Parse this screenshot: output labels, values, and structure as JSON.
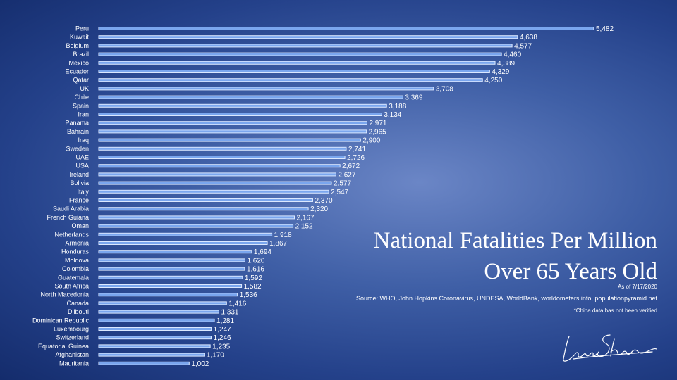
{
  "chart_data": {
    "type": "bar",
    "orientation": "horizontal",
    "title": "National Fatalities Per Million Over 65 Years Old",
    "title_lines": [
      "National Fatalities Per Million",
      "Over 65 Years Old"
    ],
    "as_of": "As of 7/17/2020",
    "source": "Source: WHO, John Hopkins Coronavirus, UNDESA, WorldBank, worldometers.info, populationpyramid.net",
    "note": "*China data has not been verified",
    "xlim": [
      0,
      5482
    ],
    "grid": false,
    "bar_color": "#7aa6ee",
    "categories": [
      "Peru",
      "Kuwait",
      "Belgium",
      "Brazil",
      "Mexico",
      "Ecuador",
      "Qatar",
      "UK",
      "Chile",
      "Spain",
      "Iran",
      "Panama",
      "Bahrain",
      "Iraq",
      "Sweden",
      "UAE",
      "USA",
      "Ireland",
      "Bolivia",
      "Italy",
      "France",
      "Saudi Arabia",
      "French Guiana",
      "Oman",
      "Netherlands",
      "Armenia",
      "Honduras",
      "Moldova",
      "Colombia",
      "Guatemala",
      "South Africa",
      "North Macedonia",
      "Canada",
      "Djibouti",
      "Dominican Republic",
      "Luxembourg",
      "Switzerland",
      "Equatorial Guinea",
      "Afghanistan",
      "Mauritania"
    ],
    "values": [
      5482,
      4638,
      4577,
      4460,
      4389,
      4329,
      4250,
      3708,
      3369,
      3188,
      3134,
      2971,
      2965,
      2900,
      2741,
      2726,
      2672,
      2627,
      2577,
      2547,
      2370,
      2320,
      2167,
      2152,
      1918,
      1867,
      1694,
      1620,
      1616,
      1592,
      1582,
      1536,
      1416,
      1331,
      1281,
      1247,
      1246,
      1235,
      1170,
      1002
    ],
    "value_labels": [
      "5,482",
      "4,638",
      "4,577",
      "4,460",
      "4,389",
      "4,329",
      "4,250",
      "3,708",
      "3,369",
      "3,188",
      "3,134",
      "2,971",
      "2,965",
      "2,900",
      "2,741",
      "2,726",
      "2,672",
      "2,627",
      "2,577",
      "2,547",
      "2,370",
      "2,320",
      "2,167",
      "2,152",
      "1,918",
      "1,867",
      "1,694",
      "1,620",
      "1,616",
      "1,592",
      "1,582",
      "1,536",
      "1,416",
      "1,331",
      "1,281",
      "1,247",
      "1,246",
      "1,235",
      "1,170",
      "1,002"
    ]
  },
  "signature": {
    "text": "Leon Shirvan"
  }
}
